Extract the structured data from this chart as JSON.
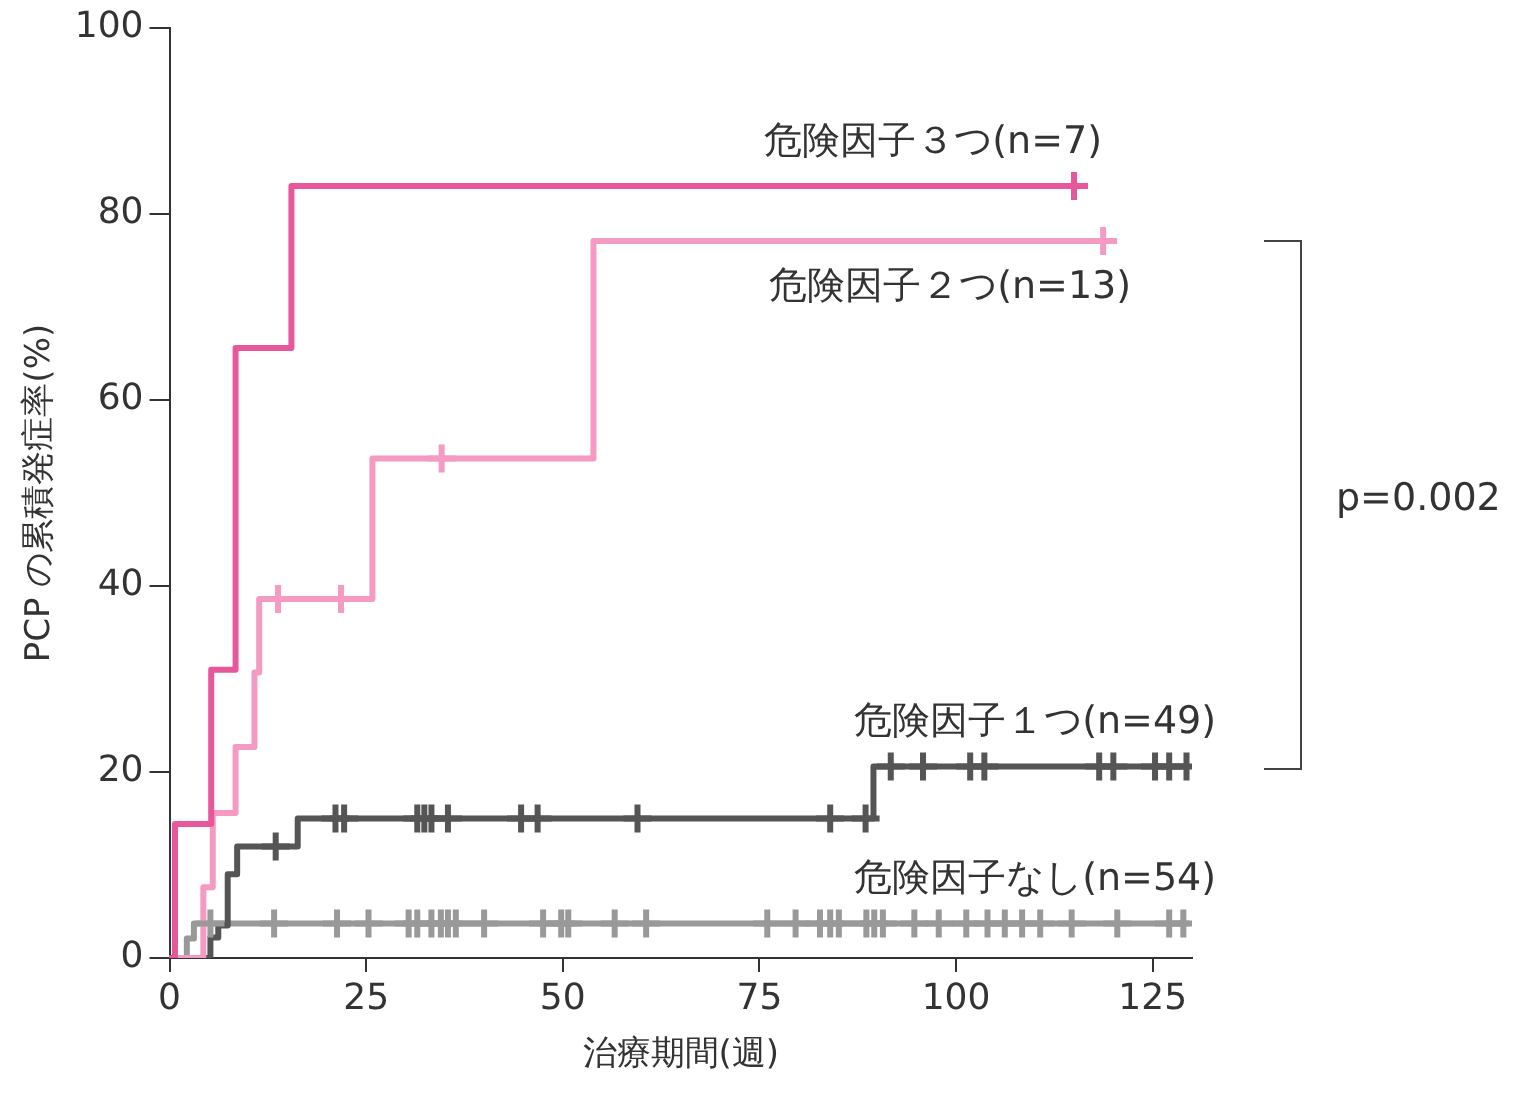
{
  "chart_data": {
    "type": "step",
    "xlabel": "治療期間(週)",
    "ylabel": "PCP の累積発症率(%)",
    "xlim": [
      0,
      130
    ],
    "xticks": [
      0,
      25,
      50,
      75,
      100,
      125
    ],
    "ylim": [
      0,
      100
    ],
    "yticks": [
      0,
      20,
      40,
      60,
      80,
      100
    ],
    "grid": false,
    "legend": false,
    "annotations": [
      "p=0.002"
    ],
    "series": [
      {
        "name": "危険因子３つ(n=7)",
        "color": "#e8579b",
        "marker": "none",
        "x": [
          0,
          0.7,
          5.3,
          8.4,
          15.5,
          115
        ],
        "values": [
          0,
          14.4,
          31.0,
          65.6,
          83.0,
          83.0
        ]
      },
      {
        "name": "危険因子２つ(n=13)",
        "color": "#f49ac3",
        "marker": "none",
        "x": [
          0,
          4.3,
          5.5,
          8.4,
          10.8,
          11.4,
          25.8,
          53.9,
          118.7
        ],
        "values": [
          0,
          7.6,
          15.6,
          22.7,
          30.7,
          38.6,
          53.7,
          77.1,
          77.1
        ]
      },
      {
        "name": "危険因子１つ(n=49)",
        "color": "#555555",
        "marker": "none",
        "x": [
          0,
          5.2,
          6.2,
          7.4,
          8.6,
          16.3,
          89.5,
          129.5
        ],
        "values": [
          0,
          2.2,
          3.5,
          9.0,
          12.0,
          15.0,
          20.6,
          20.6
        ]
      },
      {
        "name": "危険因子なし(n=54)",
        "color": "#999999",
        "marker": "none",
        "x": [
          0,
          2.2,
          3.1,
          129.5
        ],
        "values": [
          0,
          2.1,
          3.7,
          3.7
        ]
      },
      {
        "type": "scatter",
        "color": "#e8579b",
        "marker": "cross",
        "x": [
          115
        ],
        "values": [
          83.0
        ]
      },
      {
        "type": "scatter",
        "color": "#f49ac3",
        "marker": "cross",
        "x": [
          13.8,
          21.8,
          34.6,
          118.7
        ],
        "values": [
          38.6,
          38.6,
          53.7,
          77.1
        ]
      },
      {
        "type": "scatter",
        "color": "#555555",
        "marker": "cross",
        "x": [
          13.5,
          21.1,
          22.2,
          31.5,
          32.4,
          33.3,
          35.4,
          44.7,
          46.8,
          59.5,
          84.0,
          88.5,
          91.7,
          95.8,
          101.8,
          103.6,
          118.2,
          120.0,
          125.3,
          127.1,
          129.3
        ],
        "values": [
          12.0,
          15.0,
          15.0,
          15.0,
          15.0,
          15.0,
          15.0,
          15.0,
          15.0,
          15.0,
          15.0,
          15.0,
          20.6,
          20.6,
          20.6,
          20.6,
          20.6,
          20.6,
          20.6,
          20.6,
          20.6
        ]
      },
      {
        "type": "scatter",
        "color": "#999999",
        "marker": "cross",
        "x": [
          5.2,
          13.3,
          21.3,
          25.3,
          30.4,
          31.5,
          33.3,
          34.5,
          35.4,
          36.4,
          40.0,
          47.5,
          49.8,
          50.7,
          56.6,
          60.6,
          76.0,
          79.6,
          82.7,
          84.0,
          85.1,
          88.6,
          89.6,
          90.7,
          94.7,
          97.8,
          101.3,
          104.0,
          106.2,
          108.4,
          110.7,
          114.7,
          120.5,
          127.1,
          128.9
        ],
        "values": [
          3.7,
          3.7,
          3.7,
          3.7,
          3.7,
          3.7,
          3.7,
          3.7,
          3.7,
          3.7,
          3.7,
          3.7,
          3.7,
          3.7,
          3.7,
          3.7,
          3.7,
          3.7,
          3.7,
          3.7,
          3.7,
          3.7,
          3.7,
          3.7,
          3.7,
          3.7,
          3.7,
          3.7,
          3.7,
          3.7,
          3.7,
          3.7,
          3.7,
          3.7,
          3.7
        ]
      }
    ]
  }
}
